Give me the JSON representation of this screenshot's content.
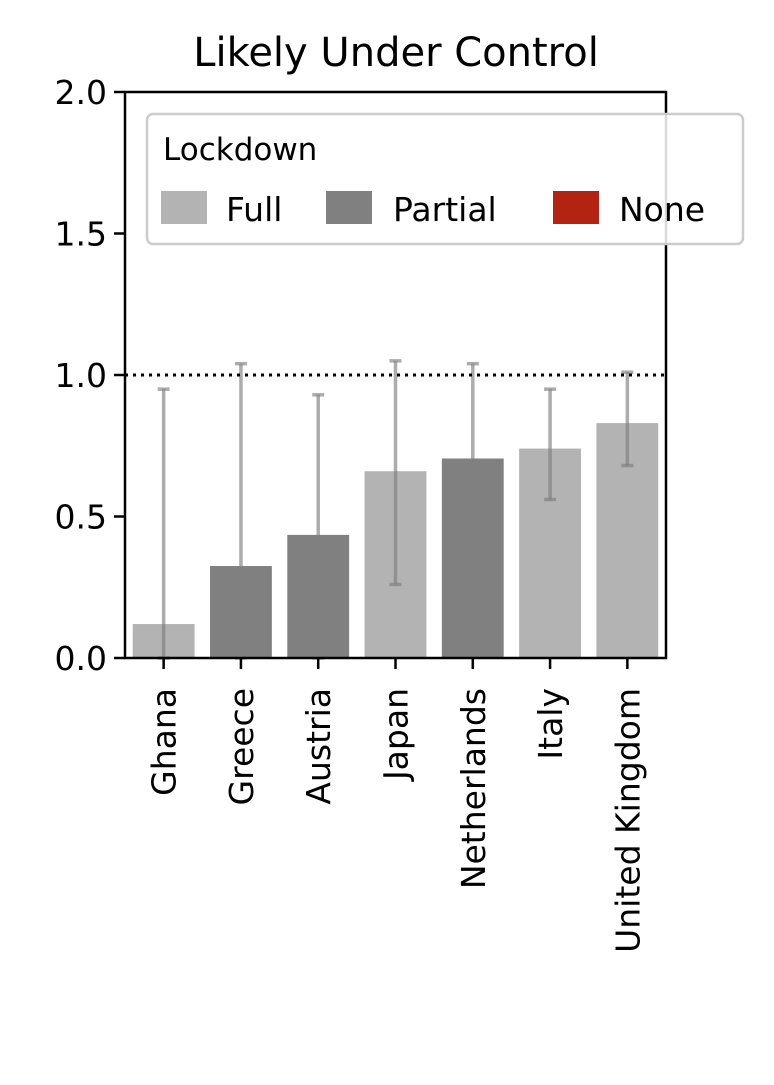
{
  "chart_data": {
    "type": "bar",
    "title": "Likely Under Control",
    "xlabel": "",
    "ylabel": "",
    "categories": [
      "Ghana",
      "Greece",
      "Austria",
      "Japan",
      "Netherlands",
      "Italy",
      "United Kingdom"
    ],
    "values": [
      0.12,
      0.325,
      0.435,
      0.66,
      0.705,
      0.74,
      0.83
    ],
    "error_low": [
      0.0,
      0.0,
      0.0,
      0.26,
      0.39,
      0.56,
      0.68
    ],
    "error_high": [
      0.95,
      1.04,
      0.93,
      1.05,
      1.04,
      0.95,
      1.01
    ],
    "lockdown": [
      "Full",
      "Partial",
      "Partial",
      "Full",
      "Partial",
      "Full",
      "Full"
    ],
    "ylim": [
      0,
      2.0
    ],
    "yticks": [
      0.0,
      0.5,
      1.0,
      1.5,
      2.0
    ],
    "ytick_labels": [
      "0.0",
      "0.5",
      "1.0",
      "1.5",
      "2.0"
    ],
    "reference_line": 1.0,
    "grid": false,
    "legend": {
      "title": "Lockdown",
      "placement": "top",
      "entries": [
        {
          "label": "Full",
          "color": "#b3b3b3"
        },
        {
          "label": "Partial",
          "color": "#808080"
        },
        {
          "label": "None",
          "color": "#b22312"
        }
      ]
    },
    "colors": {
      "Full": "#b3b3b3",
      "Partial": "#808080",
      "None": "#b22312",
      "errorbar": "#808080"
    }
  }
}
